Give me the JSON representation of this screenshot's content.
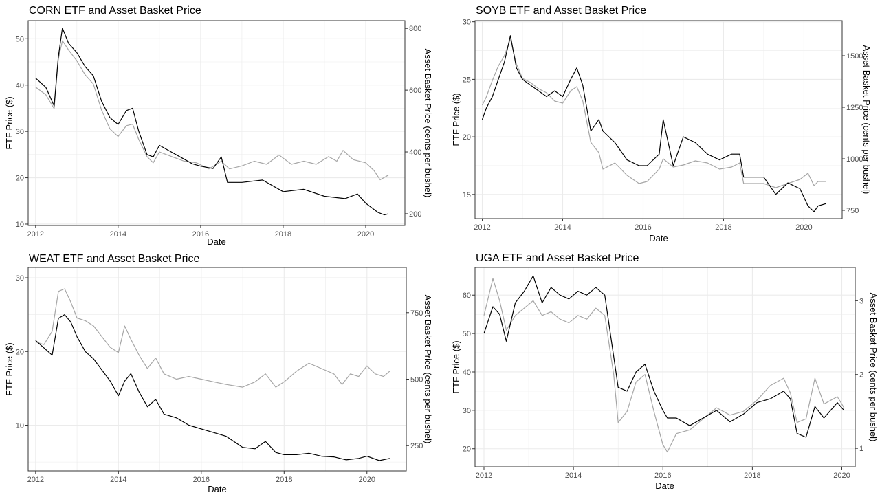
{
  "colors": {
    "etf": "#000000",
    "basket": "#a6a6a6",
    "grid": "#ebebeb",
    "panel_border": "#333333"
  },
  "chart_data": [
    {
      "type": "line",
      "title": "CORN ETF and Asset Basket Price",
      "xlabel": "Date",
      "ylabel": "ETF Price ($)",
      "y2label": "Asset Basket Price (cents per bushel)",
      "x_ticks": [
        "2012",
        "2014",
        "2016",
        "2018",
        "2020"
      ],
      "xlim": [
        2011.82,
        2020.95
      ],
      "ylim": [
        9.7,
        53.9
      ],
      "y_ticks": [
        10,
        20,
        30,
        40,
        50
      ],
      "y2lim": [
        162,
        825
      ],
      "y2_ticks": [
        200,
        400,
        600,
        800
      ],
      "grid": true,
      "series": [
        {
          "name": "",
          "axis": "left",
          "role": "etf",
          "x": [
            2012.0,
            2012.25,
            2012.45,
            2012.55,
            2012.65,
            2012.8,
            2013.0,
            2013.2,
            2013.4,
            2013.6,
            2013.8,
            2014.0,
            2014.2,
            2014.35,
            2014.5,
            2014.7,
            2014.85,
            2015.0,
            2015.2,
            2015.5,
            2015.8,
            2016.0,
            2016.3,
            2016.5,
            2016.65,
            2017.0,
            2017.5,
            2018.0,
            2018.5,
            2019.0,
            2019.5,
            2019.8,
            2020.0,
            2020.3,
            2020.45,
            2020.55
          ],
          "y": [
            41.5,
            39.5,
            35.5,
            46,
            52.3,
            49,
            47,
            44,
            42,
            36.5,
            33,
            31.5,
            34.5,
            35,
            30,
            25,
            24.5,
            27,
            26,
            24.5,
            23,
            22.5,
            22,
            24.5,
            19,
            19,
            19.5,
            17,
            17.5,
            16,
            15.5,
            16.5,
            14.5,
            12.5,
            12,
            12.2
          ]
        },
        {
          "name": "",
          "axis": "right",
          "role": "basket",
          "x": [
            2012.0,
            2012.25,
            2012.45,
            2012.55,
            2012.65,
            2012.8,
            2013.0,
            2013.2,
            2013.4,
            2013.6,
            2013.8,
            2014.0,
            2014.2,
            2014.35,
            2014.5,
            2014.7,
            2014.85,
            2015.0,
            2015.3,
            2015.6,
            2015.9,
            2016.2,
            2016.5,
            2016.7,
            2017.0,
            2017.3,
            2017.6,
            2017.9,
            2018.2,
            2018.5,
            2018.8,
            2019.1,
            2019.3,
            2019.45,
            2019.7,
            2020.0,
            2020.2,
            2020.35,
            2020.55
          ],
          "y": [
            610,
            585,
            540,
            700,
            760,
            730,
            695,
            650,
            620,
            535,
            475,
            450,
            485,
            490,
            440,
            385,
            365,
            400,
            385,
            370,
            365,
            345,
            370,
            345,
            355,
            370,
            360,
            390,
            360,
            370,
            360,
            385,
            370,
            405,
            375,
            365,
            340,
            310,
            325
          ]
        }
      ]
    },
    {
      "type": "line",
      "title": "SOYB ETF and Asset Basket Price",
      "xlabel": "Date",
      "ylabel": "ETF Price ($)",
      "y2label": "Asset Basket Price (cents per bushel)",
      "x_ticks": [
        "2012",
        "2014",
        "2016",
        "2018",
        "2020"
      ],
      "xlim": [
        2011.82,
        2020.95
      ],
      "ylim": [
        12.9,
        30.1
      ],
      "y_ticks": [
        15,
        20,
        25,
        30
      ],
      "y2lim": [
        710,
        1670
      ],
      "y2_ticks": [
        750,
        1000,
        1250,
        1500
      ],
      "grid": true,
      "series": [
        {
          "name": "",
          "axis": "left",
          "role": "etf",
          "x": [
            2012.0,
            2012.1,
            2012.25,
            2012.4,
            2012.55,
            2012.7,
            2012.85,
            2013.0,
            2013.2,
            2013.4,
            2013.6,
            2013.8,
            2014.0,
            2014.2,
            2014.35,
            2014.5,
            2014.7,
            2014.9,
            2015.0,
            2015.3,
            2015.6,
            2015.9,
            2016.1,
            2016.4,
            2016.5,
            2016.75,
            2017.0,
            2017.3,
            2017.6,
            2017.9,
            2018.2,
            2018.4,
            2018.5,
            2018.7,
            2019.0,
            2019.3,
            2019.6,
            2019.9,
            2020.1,
            2020.25,
            2020.35,
            2020.55
          ],
          "y": [
            21.5,
            22.5,
            23.5,
            25,
            26.5,
            28.8,
            26,
            25,
            24.5,
            24,
            23.5,
            24,
            23.5,
            25,
            26,
            24.5,
            20.5,
            21.5,
            20.5,
            19.5,
            18,
            17.5,
            17.5,
            18.5,
            21.5,
            17.5,
            20,
            19.5,
            18.5,
            18,
            18.5,
            18.5,
            16.5,
            16.5,
            16.5,
            15,
            16,
            15.5,
            14,
            13.5,
            14,
            14.2
          ]
        },
        {
          "name": "",
          "axis": "right",
          "role": "basket",
          "x": [
            2012.0,
            2012.1,
            2012.25,
            2012.4,
            2012.55,
            2012.7,
            2012.85,
            2013.0,
            2013.2,
            2013.4,
            2013.6,
            2013.8,
            2014.0,
            2014.2,
            2014.35,
            2014.5,
            2014.7,
            2014.9,
            2015.0,
            2015.3,
            2015.6,
            2015.9,
            2016.1,
            2016.4,
            2016.5,
            2016.75,
            2017.0,
            2017.3,
            2017.6,
            2017.9,
            2018.2,
            2018.4,
            2018.5,
            2018.7,
            2019.0,
            2019.3,
            2019.6,
            2019.9,
            2020.1,
            2020.25,
            2020.35,
            2020.55
          ],
          "y": [
            1260,
            1300,
            1380,
            1450,
            1500,
            1580,
            1460,
            1390,
            1370,
            1340,
            1320,
            1280,
            1270,
            1330,
            1350,
            1280,
            1080,
            1030,
            950,
            980,
            920,
            880,
            890,
            950,
            1000,
            960,
            970,
            990,
            980,
            950,
            960,
            980,
            880,
            880,
            880,
            860,
            880,
            900,
            930,
            870,
            890,
            890
          ]
        }
      ]
    },
    {
      "type": "line",
      "title": "WEAT ETF and Asset Basket Price",
      "xlabel": "Date",
      "ylabel": "ETF Price ($)",
      "y2label": "Asset Basket Price (cents per bushel)",
      "x_ticks": [
        "2012",
        "2014",
        "2016",
        "2018",
        "2020"
      ],
      "xlim": [
        2011.82,
        2020.95
      ],
      "ylim": [
        3.8,
        31.4
      ],
      "y_ticks": [
        10,
        20,
        30
      ],
      "y2lim": [
        155,
        920
      ],
      "y2_ticks": [
        250,
        500,
        750
      ],
      "grid": true,
      "series": [
        {
          "name": "",
          "axis": "left",
          "role": "etf",
          "x": [
            2012.0,
            2012.2,
            2012.4,
            2012.55,
            2012.7,
            2012.85,
            2013.0,
            2013.2,
            2013.4,
            2013.6,
            2013.8,
            2014.0,
            2014.15,
            2014.3,
            2014.5,
            2014.7,
            2014.9,
            2015.1,
            2015.4,
            2015.7,
            2016.0,
            2016.3,
            2016.6,
            2017.0,
            2017.3,
            2017.55,
            2017.8,
            2018.0,
            2018.3,
            2018.6,
            2018.9,
            2019.2,
            2019.5,
            2019.8,
            2020.0,
            2020.3,
            2020.55
          ],
          "y": [
            21.5,
            20.5,
            19.5,
            24.5,
            25,
            24,
            22,
            20,
            19,
            17.5,
            16,
            14,
            16,
            17,
            14.5,
            12.5,
            13.5,
            11.5,
            11,
            10,
            9.5,
            9,
            8.5,
            7,
            6.8,
            7.8,
            6.3,
            6,
            6,
            6.2,
            5.8,
            5.7,
            5.3,
            5.5,
            5.8,
            5.2,
            5.5
          ]
        },
        {
          "name": "",
          "axis": "right",
          "role": "basket",
          "x": [
            2012.0,
            2012.2,
            2012.4,
            2012.55,
            2012.7,
            2012.85,
            2013.0,
            2013.2,
            2013.4,
            2013.6,
            2013.8,
            2014.0,
            2014.15,
            2014.3,
            2014.5,
            2014.7,
            2014.9,
            2015.1,
            2015.4,
            2015.7,
            2016.0,
            2016.3,
            2016.6,
            2017.0,
            2017.3,
            2017.55,
            2017.8,
            2018.0,
            2018.3,
            2018.6,
            2018.9,
            2019.2,
            2019.4,
            2019.6,
            2019.8,
            2020.0,
            2020.2,
            2020.4,
            2020.55
          ],
          "y": [
            640,
            630,
            680,
            830,
            840,
            790,
            730,
            720,
            700,
            660,
            620,
            600,
            700,
            650,
            590,
            540,
            580,
            520,
            500,
            510,
            500,
            490,
            480,
            470,
            490,
            520,
            470,
            490,
            530,
            560,
            540,
            520,
            480,
            520,
            510,
            550,
            520,
            510,
            530
          ]
        }
      ]
    },
    {
      "type": "line",
      "title": "UGA ETF and Asset Basket Price",
      "xlabel": "Date",
      "ylabel": "ETF Price ($)",
      "y2label": "Asset Basket Price (cents per bushel)",
      "x_ticks": [
        "2012",
        "2014",
        "2016",
        "2018",
        "2020"
      ],
      "xlim": [
        2011.8,
        2020.3
      ],
      "ylim": [
        15.3,
        67.2
      ],
      "y_ticks": [
        20,
        30,
        40,
        50,
        60
      ],
      "y2lim": [
        0.75,
        3.45
      ],
      "y2_ticks": [
        1,
        2,
        3
      ],
      "grid": true,
      "series": [
        {
          "name": "",
          "axis": "left",
          "role": "etf",
          "x": [
            2012.0,
            2012.2,
            2012.35,
            2012.5,
            2012.7,
            2012.9,
            2013.1,
            2013.3,
            2013.5,
            2013.7,
            2013.9,
            2014.1,
            2014.3,
            2014.5,
            2014.7,
            2014.9,
            2015.0,
            2015.2,
            2015.4,
            2015.6,
            2015.8,
            2016.0,
            2016.1,
            2016.3,
            2016.6,
            2016.9,
            2017.2,
            2017.5,
            2017.8,
            2018.1,
            2018.4,
            2018.7,
            2018.85,
            2019.0,
            2019.2,
            2019.4,
            2019.6,
            2019.9,
            2020.05
          ],
          "y": [
            50,
            57,
            55,
            48,
            58,
            61,
            65,
            58,
            62,
            60,
            59,
            61,
            60,
            62,
            60,
            44,
            36,
            35,
            40,
            42,
            35,
            30,
            28,
            28,
            26,
            28,
            30,
            27,
            29,
            32,
            33,
            35,
            33,
            24,
            23,
            31,
            28,
            32,
            30
          ]
        },
        {
          "name": "",
          "axis": "right",
          "role": "basket",
          "x": [
            2012.0,
            2012.2,
            2012.35,
            2012.5,
            2012.7,
            2012.9,
            2013.1,
            2013.3,
            2013.5,
            2013.7,
            2013.9,
            2014.1,
            2014.3,
            2014.5,
            2014.7,
            2014.9,
            2015.0,
            2015.2,
            2015.4,
            2015.6,
            2015.8,
            2016.0,
            2016.1,
            2016.3,
            2016.6,
            2016.9,
            2017.2,
            2017.5,
            2017.8,
            2018.1,
            2018.4,
            2018.7,
            2018.85,
            2019.0,
            2019.2,
            2019.4,
            2019.6,
            2019.9,
            2020.05
          ],
          "y": [
            2.8,
            3.3,
            3.0,
            2.6,
            2.8,
            2.9,
            3.0,
            2.8,
            2.85,
            2.75,
            2.7,
            2.8,
            2.75,
            2.9,
            2.8,
            2.0,
            1.35,
            1.5,
            1.9,
            2.0,
            1.5,
            1.05,
            0.95,
            1.2,
            1.25,
            1.4,
            1.55,
            1.45,
            1.5,
            1.65,
            1.85,
            1.95,
            1.75,
            1.35,
            1.4,
            1.95,
            1.6,
            1.7,
            1.55
          ]
        }
      ]
    }
  ]
}
